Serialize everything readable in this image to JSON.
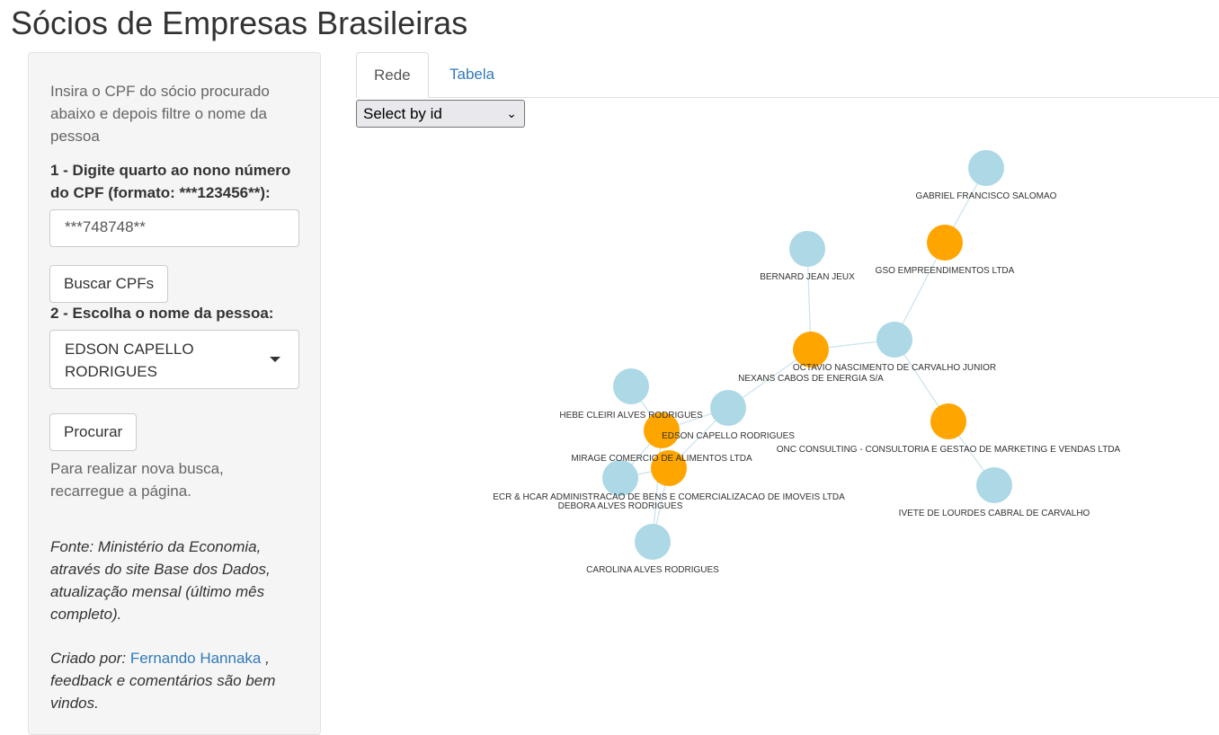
{
  "page_title": "Sócios de Empresas Brasileiras",
  "sidebar": {
    "intro": "Insira o CPF do sócio procurado abaixo e depois filtre o nome da pessoa",
    "step1_label": "1 - Digite quarto ao nono número do CPF (formato: ***123456**):",
    "cpf_value": "***748748**",
    "search_button": "Buscar CPFs",
    "step2_label": "2 - Escolha o nome da pessoa:",
    "person_selected": "EDSON CAPELLO RODRIGUES",
    "submit_button": "Procurar",
    "hint": "Para realizar nova busca, recarregue a página.",
    "source": "Fonte: Ministério da Economia, através do site Base dos Dados, atualização mensal (último mês completo).",
    "credit_prefix": "Criado por: ",
    "credit_link": "Fernando Hannaka",
    "credit_suffix": " , feedback e comentários são bem vindos."
  },
  "tabs": [
    {
      "label": "Rede",
      "active": true
    },
    {
      "label": "Tabela",
      "active": false
    }
  ],
  "network": {
    "select_label": "Select by id",
    "colors": {
      "person": "#add8e6",
      "company": "#ffa500",
      "edge": "#c9e3ec"
    },
    "nodes": [
      {
        "id": "gabriel",
        "label": "GABRIEL FRANCISCO SALOMAO",
        "type": "person"
      },
      {
        "id": "gso",
        "label": "GSO EMPREENDIMENTOS LTDA",
        "type": "company"
      },
      {
        "id": "bernard",
        "label": "BERNARD JEAN JEUX",
        "type": "person"
      },
      {
        "id": "octavio",
        "label": "OCTAVIO NASCIMENTO DE CARVALHO JUNIOR",
        "type": "person"
      },
      {
        "id": "nexans",
        "label": "NEXANS CABOS DE ENERGIA S/A",
        "type": "company"
      },
      {
        "id": "hebe",
        "label": "HEBE CLEIRI ALVES RODRIGUES",
        "type": "person"
      },
      {
        "id": "edson",
        "label": "EDSON CAPELLO RODRIGUES",
        "type": "person"
      },
      {
        "id": "onc",
        "label": "ONC CONSULTING - CONSULTORIA E GESTAO DE MARKETING E VENDAS LTDA",
        "type": "company"
      },
      {
        "id": "mirage",
        "label": "MIRAGE COMERCIO DE ALIMENTOS LTDA",
        "type": "company"
      },
      {
        "id": "ecr",
        "label": "ECR & HCAR ADMINISTRACAO DE BENS E COMERCIALIZACAO DE IMOVEIS LTDA",
        "type": "company"
      },
      {
        "id": "debora",
        "label": "DEBORA ALVES RODRIGUES",
        "type": "person"
      },
      {
        "id": "ivete",
        "label": "IVETE DE LOURDES CABRAL DE CARVALHO",
        "type": "person"
      },
      {
        "id": "carolina",
        "label": "CAROLINA ALVES RODRIGUES",
        "type": "person"
      }
    ],
    "edges": [
      [
        "gabriel",
        "gso"
      ],
      [
        "gso",
        "octavio"
      ],
      [
        "bernard",
        "nexans"
      ],
      [
        "nexans",
        "octavio"
      ],
      [
        "nexans",
        "edson"
      ],
      [
        "octavio",
        "onc"
      ],
      [
        "onc",
        "ivete"
      ],
      [
        "edson",
        "mirage"
      ],
      [
        "edson",
        "ecr"
      ],
      [
        "hebe",
        "mirage"
      ],
      [
        "mirage",
        "debora"
      ],
      [
        "ecr",
        "debora"
      ],
      [
        "ecr",
        "carolina"
      ],
      [
        "mirage",
        "carolina"
      ]
    ]
  }
}
